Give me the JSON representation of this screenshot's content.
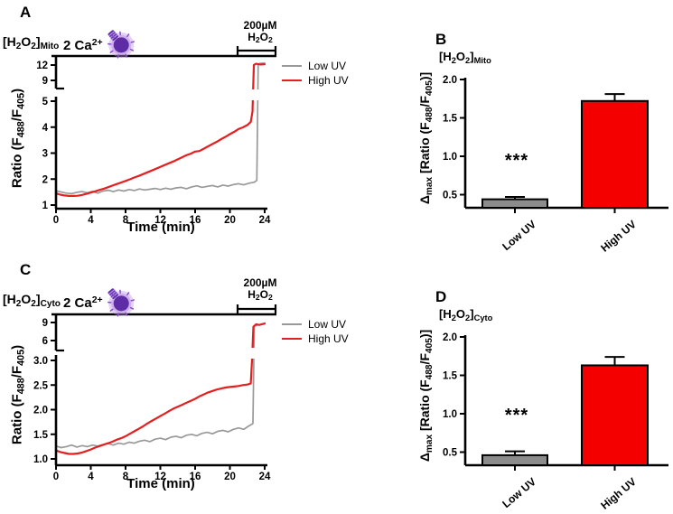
{
  "colors": {
    "low_uv_line": "#999999",
    "high_uv_line": "#E3201F",
    "low_uv_bar": "#8C8C8C",
    "high_uv_bar": "#F40000",
    "axis": "#000000",
    "lamp_bulb": "#5E2CA5",
    "lamp_glow": "#BB92E6",
    "lamp_rays": "#8A4BD0",
    "lamp_stripes": "#B08AE0"
  },
  "figure": {
    "panel_a": {
      "letter": "A",
      "probe": [
        {
          "t": "[H"
        },
        {
          "s": "2"
        },
        {
          "t": "O"
        },
        {
          "s": "2"
        },
        {
          "t": "]"
        },
        {
          "s": "Mito"
        }
      ],
      "ca": [
        {
          "t": "2 Ca"
        },
        {
          "p": "2+"
        }
      ],
      "pulse_conc": "200µM",
      "pulse_agent": [
        {
          "t": "H"
        },
        {
          "s": "2"
        },
        {
          "t": "O"
        },
        {
          "s": "2"
        }
      ],
      "y_title": [
        {
          "t": "Ratio (F"
        },
        {
          "s": "488"
        },
        {
          "t": "/F"
        },
        {
          "s": "405"
        },
        {
          "t": ")"
        }
      ],
      "x_title": "Time (min)"
    },
    "panel_b": {
      "letter": "B",
      "probe": [
        {
          "t": "[H"
        },
        {
          "s": "2"
        },
        {
          "t": "O"
        },
        {
          "s": "2"
        },
        {
          "t": "]"
        },
        {
          "s": "Mito"
        }
      ],
      "y_title": [
        {
          "t": "Δ"
        },
        {
          "s": "max"
        },
        {
          "t": " [Ratio (F"
        },
        {
          "s": "488"
        },
        {
          "t": "/F"
        },
        {
          "s": "405"
        },
        {
          "t": ")]"
        }
      ],
      "sig": "***"
    },
    "panel_c": {
      "letter": "C",
      "probe": [
        {
          "t": "[H"
        },
        {
          "s": "2"
        },
        {
          "t": "O"
        },
        {
          "s": "2"
        },
        {
          "t": "]"
        },
        {
          "s": "Cyto"
        }
      ],
      "ca": [
        {
          "t": "2 Ca"
        },
        {
          "p": "2+"
        }
      ],
      "pulse_conc": "200µM",
      "pulse_agent": [
        {
          "t": "H"
        },
        {
          "s": "2"
        },
        {
          "t": "O"
        },
        {
          "s": "2"
        }
      ],
      "y_title": [
        {
          "t": "Ratio (F"
        },
        {
          "s": "488"
        },
        {
          "t": "/F"
        },
        {
          "s": "405"
        },
        {
          "t": ")"
        }
      ],
      "x_title": "Time (min)"
    },
    "panel_d": {
      "letter": "D",
      "probe": [
        {
          "t": "[H"
        },
        {
          "s": "2"
        },
        {
          "t": "O"
        },
        {
          "s": "2"
        },
        {
          "t": "]"
        },
        {
          "s": "Cyto"
        }
      ],
      "y_title": [
        {
          "t": "Δ"
        },
        {
          "s": "max"
        },
        {
          "t": " [Ratio (F"
        },
        {
          "s": "488"
        },
        {
          "t": "/F"
        },
        {
          "s": "405"
        },
        {
          "t": ")]"
        }
      ],
      "sig": "***"
    }
  },
  "chart_data": [
    {
      "id": "line-mito",
      "type": "line",
      "title": "[H2O2]Mito",
      "xlabel": "Time (min)",
      "ylabel": "Ratio (F488/F405)",
      "xlim": [
        0,
        24
      ],
      "x_ticks": [
        0,
        4,
        8,
        12,
        16,
        20,
        24
      ],
      "y_lower_ticks": [
        1,
        2,
        3,
        4,
        5
      ],
      "y_upper_ticks": [
        9,
        12
      ],
      "y_lower_format": "int",
      "y_upper_format": "int",
      "axis_break": [
        5,
        9
      ],
      "treatment": "2 Ca2+",
      "h2o2_pulse": {
        "label": "200µM H2O2",
        "t_start": 21,
        "t_end": 24
      },
      "series": [
        {
          "name": "Low UV",
          "color": "#999999",
          "width": 1.7,
          "x": [
            0,
            0.6,
            1.2,
            1.8,
            2.4,
            3,
            3.6,
            4.2,
            4.8,
            5.4,
            6,
            6.6,
            7.2,
            7.8,
            8.4,
            9,
            9.6,
            10.2,
            10.8,
            11.4,
            12,
            12.6,
            13.2,
            13.8,
            14.4,
            15,
            15.6,
            16.2,
            16.8,
            17.4,
            18,
            18.6,
            19.2,
            19.8,
            20.4,
            21,
            21.6,
            22.2,
            22.8,
            23.1,
            23.25,
            23.4,
            23.7,
            24
          ],
          "y": [
            1.55,
            1.5,
            1.46,
            1.44,
            1.49,
            1.52,
            1.47,
            1.53,
            1.46,
            1.54,
            1.57,
            1.52,
            1.58,
            1.54,
            1.6,
            1.56,
            1.62,
            1.58,
            1.61,
            1.64,
            1.6,
            1.65,
            1.61,
            1.66,
            1.68,
            1.63,
            1.7,
            1.74,
            1.68,
            1.72,
            1.75,
            1.7,
            1.77,
            1.73,
            1.79,
            1.82,
            1.78,
            1.84,
            1.88,
            1.95,
            12.1,
            12.3,
            12.35,
            12.4
          ]
        },
        {
          "name": "High UV",
          "color": "#E3201F",
          "width": 2.2,
          "x": [
            0,
            0.5,
            1,
            1.5,
            2,
            2.5,
            3,
            3.5,
            4,
            4.5,
            5,
            5.5,
            6,
            6.5,
            7,
            7.5,
            8,
            8.5,
            9,
            9.5,
            10,
            10.5,
            11,
            11.5,
            12,
            12.5,
            13,
            13.5,
            14,
            14.5,
            15,
            15.5,
            16,
            16.5,
            17,
            17.5,
            18,
            18.5,
            19,
            19.5,
            20,
            20.5,
            21,
            21.5,
            22,
            22.4,
            22.6,
            22.75,
            23,
            23.5,
            24
          ],
          "y": [
            1.45,
            1.4,
            1.37,
            1.35,
            1.35,
            1.36,
            1.39,
            1.43,
            1.48,
            1.53,
            1.58,
            1.63,
            1.69,
            1.75,
            1.81,
            1.87,
            1.93,
            1.99,
            2.06,
            2.12,
            2.19,
            2.26,
            2.33,
            2.4,
            2.47,
            2.54,
            2.61,
            2.68,
            2.76,
            2.84,
            2.92,
            2.98,
            3.06,
            3.08,
            3.17,
            3.26,
            3.35,
            3.44,
            3.54,
            3.63,
            3.73,
            3.82,
            3.93,
            3.99,
            4.08,
            4.2,
            4.6,
            12.0,
            12.25,
            12.1,
            12.15
          ]
        }
      ]
    },
    {
      "id": "bar-mito",
      "type": "bar",
      "title": "[H2O2]Mito",
      "ylabel": "Δmax [Ratio (F488/F405)]",
      "categories": [
        "Low UV",
        "High UV"
      ],
      "values": [
        0.44,
        1.72
      ],
      "errors": [
        0.03,
        0.09
      ],
      "colors": [
        "#8C8C8C",
        "#F40000"
      ],
      "y_ticks": [
        0.5,
        1.0,
        1.5,
        2.0
      ],
      "ylim": [
        0.33,
        2.05
      ],
      "significance": "***",
      "significance_on": "Low UV"
    },
    {
      "id": "line-cyto",
      "type": "line",
      "title": "[H2O2]Cyto",
      "xlabel": "Time (min)",
      "ylabel": "Ratio (F488/F405)",
      "xlim": [
        0,
        24
      ],
      "x_ticks": [
        0,
        4,
        8,
        12,
        16,
        20,
        24
      ],
      "y_lower_ticks": [
        1.0,
        1.5,
        2.0,
        2.5,
        3.0
      ],
      "y_upper_ticks": [
        6,
        9
      ],
      "y_lower_format": "1dp",
      "y_upper_format": "int",
      "axis_break": [
        3,
        6
      ],
      "treatment": "2 Ca2+",
      "h2o2_pulse": {
        "label": "200µM H2O2",
        "t_start": 21,
        "t_end": 24
      },
      "series": [
        {
          "name": "Low UV",
          "color": "#999999",
          "width": 1.7,
          "x": [
            0,
            0.6,
            1.2,
            1.8,
            2.4,
            3,
            3.6,
            4.2,
            4.8,
            5.4,
            6,
            6.6,
            7.2,
            7.8,
            8.4,
            9,
            9.6,
            10.2,
            10.8,
            11.4,
            12,
            12.6,
            13.2,
            13.8,
            14.4,
            15,
            15.6,
            16.2,
            16.8,
            17.4,
            18,
            18.6,
            19.2,
            19.8,
            20.4,
            21,
            21.6,
            22.1,
            22.5,
            22.65,
            22.8,
            23.2,
            24
          ],
          "y": [
            1.26,
            1.23,
            1.25,
            1.28,
            1.24,
            1.27,
            1.25,
            1.28,
            1.26,
            1.29,
            1.31,
            1.28,
            1.32,
            1.3,
            1.34,
            1.32,
            1.36,
            1.38,
            1.35,
            1.4,
            1.42,
            1.39,
            1.44,
            1.46,
            1.43,
            1.48,
            1.5,
            1.47,
            1.52,
            1.54,
            1.51,
            1.56,
            1.58,
            1.55,
            1.6,
            1.63,
            1.6,
            1.66,
            1.7,
            1.72,
            8.4,
            8.6,
            8.75
          ]
        },
        {
          "name": "High UV",
          "color": "#E3201F",
          "width": 2.2,
          "x": [
            0,
            0.5,
            1,
            1.5,
            2,
            2.5,
            3,
            3.5,
            4,
            4.5,
            5,
            5.5,
            6,
            6.5,
            7,
            7.5,
            8,
            8.5,
            9,
            9.5,
            10,
            10.5,
            11,
            11.5,
            12,
            12.5,
            13,
            13.5,
            14,
            14.5,
            15,
            15.5,
            16,
            16.5,
            17,
            17.5,
            18,
            18.5,
            19,
            19.5,
            20,
            20.5,
            21,
            21.5,
            22,
            22.4,
            22.55,
            22.7,
            23,
            23.4,
            24
          ],
          "y": [
            1.17,
            1.14,
            1.12,
            1.1,
            1.1,
            1.11,
            1.13,
            1.16,
            1.19,
            1.23,
            1.26,
            1.29,
            1.32,
            1.35,
            1.39,
            1.42,
            1.46,
            1.51,
            1.56,
            1.61,
            1.66,
            1.72,
            1.77,
            1.82,
            1.87,
            1.92,
            1.97,
            2.02,
            2.06,
            2.1,
            2.14,
            2.18,
            2.22,
            2.27,
            2.31,
            2.35,
            2.38,
            2.41,
            2.43,
            2.45,
            2.46,
            2.47,
            2.48,
            2.5,
            2.51,
            2.53,
            3.1,
            8.3,
            8.7,
            8.6,
            8.85
          ]
        }
      ]
    },
    {
      "id": "bar-cyto",
      "type": "bar",
      "title": "[H2O2]Cyto",
      "ylabel": "Δmax [Ratio (F488/F405)]",
      "categories": [
        "Low UV",
        "High UV"
      ],
      "values": [
        0.46,
        1.63
      ],
      "errors": [
        0.05,
        0.11
      ],
      "colors": [
        "#8C8C8C",
        "#F40000"
      ],
      "y_ticks": [
        0.5,
        1.0,
        1.5,
        2.0
      ],
      "ylim": [
        0.33,
        2.05
      ],
      "significance": "***",
      "significance_on": "Low UV"
    }
  ]
}
